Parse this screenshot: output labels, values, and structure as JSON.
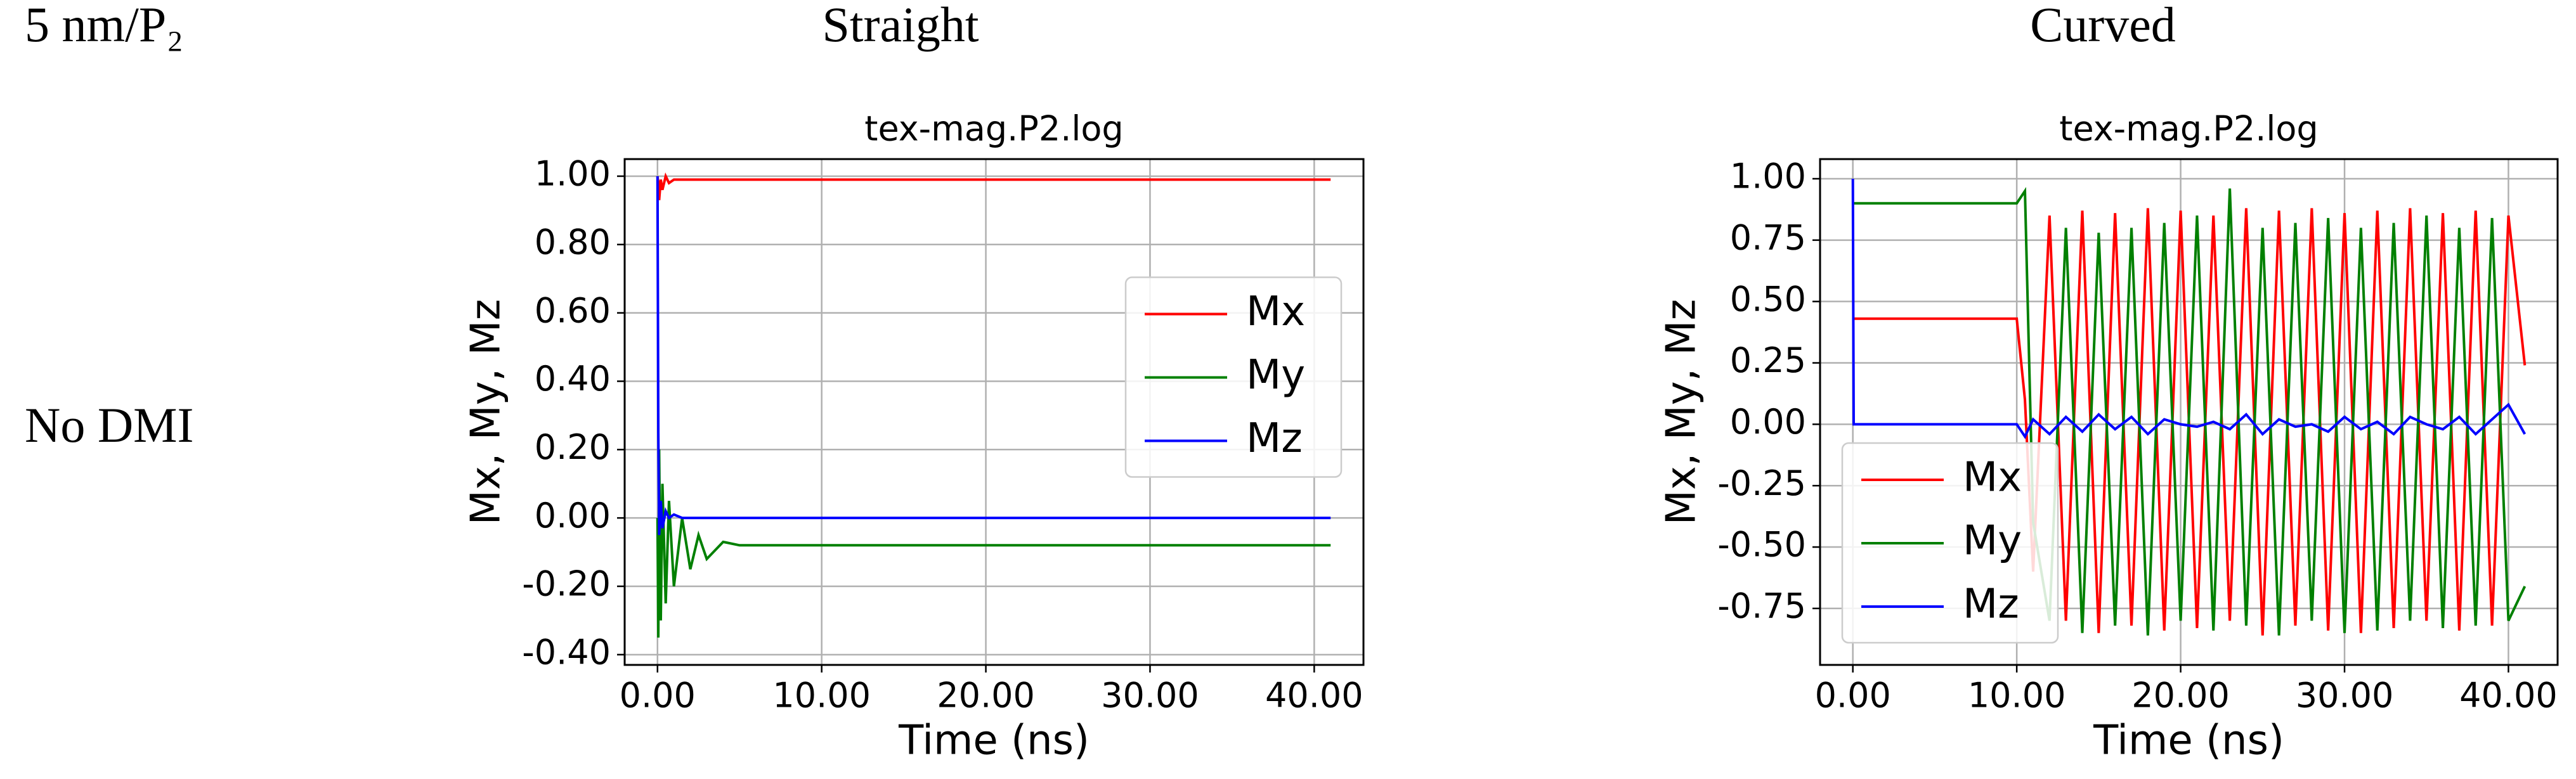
{
  "header": {
    "label": "5 nm/P₂",
    "columns": [
      "Straight",
      "Curved"
    ],
    "row": "No DMI"
  },
  "chart_data": [
    {
      "type": "line",
      "title": "tex-mag.P2.log",
      "xlabel": "Time (ns)",
      "ylabel": "Mx, My, Mz",
      "x": [
        0,
        0.05,
        0.1,
        0.2,
        0.3,
        0.5,
        0.7,
        1,
        1.5,
        2,
        2.5,
        3,
        4,
        5,
        10,
        15,
        20,
        25,
        30,
        35,
        41
      ],
      "series": [
        {
          "name": "Mx",
          "color": "#ff0000",
          "values": [
            1.0,
            0.98,
            0.93,
            0.99,
            0.96,
            1.0,
            0.98,
            0.99,
            0.99,
            0.99,
            0.99,
            0.99,
            0.99,
            0.99,
            0.99,
            0.99,
            0.99,
            0.99,
            0.99,
            0.99,
            0.99
          ]
        },
        {
          "name": "My",
          "color": "#008000",
          "values": [
            0,
            -0.35,
            0.2,
            -0.3,
            0.1,
            -0.25,
            0.05,
            -0.2,
            0.0,
            -0.15,
            -0.05,
            -0.12,
            -0.07,
            -0.08,
            -0.08,
            -0.08,
            -0.08,
            -0.08,
            -0.08,
            -0.08,
            -0.08
          ]
        },
        {
          "name": "Mz",
          "color": "#0000ff",
          "values": [
            1.0,
            0.25,
            -0.05,
            0.05,
            -0.03,
            0.02,
            0.0,
            0.01,
            0.0,
            0.0,
            0.0,
            0.0,
            0.0,
            0.0,
            0.0,
            0.0,
            0.0,
            0.0,
            0.0,
            0.0,
            0.0
          ]
        }
      ],
      "xlim": [
        -2,
        43
      ],
      "ylim": [
        -0.43,
        1.05
      ],
      "xticks": [
        {
          "value": 0,
          "label": "0.00"
        },
        {
          "value": 10,
          "label": "10.00"
        },
        {
          "value": 20,
          "label": "20.00"
        },
        {
          "value": 30,
          "label": "30.00"
        },
        {
          "value": 40,
          "label": "40.00"
        }
      ],
      "yticks": [
        {
          "value": -0.4,
          "label": "-0.40"
        },
        {
          "value": -0.2,
          "label": "-0.20"
        },
        {
          "value": 0,
          "label": "0.00"
        },
        {
          "value": 0.2,
          "label": "0.20"
        },
        {
          "value": 0.4,
          "label": "0.40"
        },
        {
          "value": 0.6,
          "label": "0.60"
        },
        {
          "value": 0.8,
          "label": "0.80"
        },
        {
          "value": 1.0,
          "label": "1.00"
        }
      ],
      "grid": true,
      "legend": "center right"
    },
    {
      "type": "line",
      "title": "tex-mag.P2.log",
      "xlabel": "Time (ns)",
      "ylabel": "Mx, My, Mz",
      "x": [
        0,
        0.05,
        1,
        2,
        3,
        4,
        5,
        6,
        7,
        8,
        9,
        10,
        10.5,
        11,
        12,
        13,
        14,
        15,
        16,
        17,
        18,
        19,
        20,
        21,
        22,
        23,
        24,
        25,
        26,
        27,
        28,
        29,
        30,
        31,
        32,
        33,
        34,
        35,
        36,
        37,
        38,
        39,
        40,
        41
      ],
      "series": [
        {
          "name": "Mx",
          "color": "#ff0000",
          "values": [
            0.43,
            0.43,
            0.43,
            0.43,
            0.43,
            0.43,
            0.43,
            0.43,
            0.43,
            0.43,
            0.43,
            0.43,
            0.1,
            -0.6,
            0.85,
            -0.8,
            0.87,
            -0.85,
            0.86,
            -0.82,
            0.88,
            -0.84,
            0.87,
            -0.83,
            0.85,
            -0.8,
            0.88,
            -0.86,
            0.87,
            -0.82,
            0.88,
            -0.84,
            0.86,
            -0.85,
            0.87,
            -0.83,
            0.88,
            -0.8,
            0.86,
            -0.84,
            0.87,
            -0.82,
            0.85,
            0.24
          ]
        },
        {
          "name": "My",
          "color": "#008000",
          "values": [
            0.9,
            0.9,
            0.9,
            0.9,
            0.9,
            0.9,
            0.9,
            0.9,
            0.9,
            0.9,
            0.9,
            0.9,
            0.95,
            -0.4,
            -0.8,
            0.8,
            -0.85,
            0.78,
            -0.82,
            0.8,
            -0.86,
            0.82,
            -0.8,
            0.85,
            -0.84,
            0.96,
            -0.82,
            0.8,
            -0.86,
            0.82,
            -0.8,
            0.84,
            -0.85,
            0.8,
            -0.84,
            0.82,
            -0.8,
            0.85,
            -0.83,
            0.8,
            -0.82,
            0.84,
            -0.8,
            -0.66
          ]
        },
        {
          "name": "Mz",
          "color": "#0000ff",
          "values": [
            1.0,
            0.0,
            0.0,
            0.0,
            0.0,
            0.0,
            0.0,
            0.0,
            0.0,
            0.0,
            0.0,
            0.0,
            -0.05,
            0.02,
            -0.04,
            0.03,
            -0.03,
            0.04,
            -0.02,
            0.03,
            -0.04,
            0.02,
            0.0,
            -0.01,
            0.01,
            -0.02,
            0.04,
            -0.04,
            0.02,
            -0.01,
            0.0,
            -0.03,
            0.03,
            -0.02,
            0.01,
            -0.04,
            0.03,
            0.0,
            -0.02,
            0.03,
            -0.04,
            0.02,
            0.08,
            -0.04
          ]
        }
      ],
      "xlim": [
        -2,
        43
      ],
      "ylim": [
        -0.98,
        1.08
      ],
      "xticks": [
        {
          "value": 0,
          "label": "0.00"
        },
        {
          "value": 10,
          "label": "10.00"
        },
        {
          "value": 20,
          "label": "20.00"
        },
        {
          "value": 30,
          "label": "30.00"
        },
        {
          "value": 40,
          "label": "40.00"
        }
      ],
      "yticks": [
        {
          "value": -0.75,
          "label": "-0.75"
        },
        {
          "value": -0.5,
          "label": "-0.50"
        },
        {
          "value": -0.25,
          "label": "-0.25"
        },
        {
          "value": 0,
          "label": "0.00"
        },
        {
          "value": 0.25,
          "label": "0.25"
        },
        {
          "value": 0.5,
          "label": "0.50"
        },
        {
          "value": 0.75,
          "label": "0.75"
        },
        {
          "value": 1.0,
          "label": "1.00"
        }
      ],
      "grid": true,
      "legend": "lower left"
    }
  ]
}
